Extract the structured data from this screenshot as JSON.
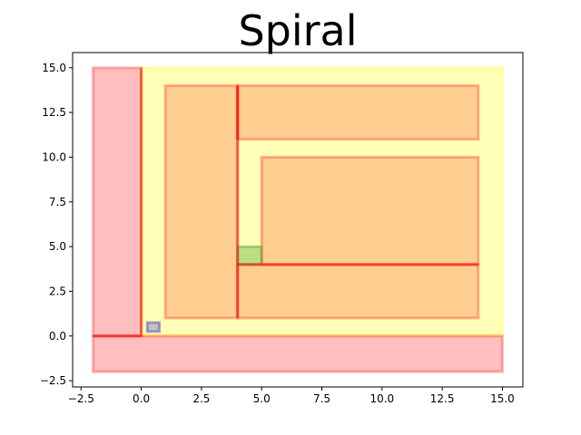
{
  "chart_data": {
    "type": "rectangles",
    "title": "Spiral",
    "xlabel": "",
    "ylabel": "",
    "xlim": [
      -2.85,
      15.85
    ],
    "ylim": [
      -2.85,
      15.85
    ],
    "grid": false,
    "xticks": [
      {
        "value": -2.5,
        "label": "−2.5"
      },
      {
        "value": 0.0,
        "label": "0.0"
      },
      {
        "value": 2.5,
        "label": "2.5"
      },
      {
        "value": 5.0,
        "label": "5.0"
      },
      {
        "value": 7.5,
        "label": "7.5"
      },
      {
        "value": 10.0,
        "label": "10.0"
      },
      {
        "value": 12.5,
        "label": "12.5"
      },
      {
        "value": 15.0,
        "label": "15.0"
      }
    ],
    "yticks": [
      {
        "value": -2.5,
        "label": "−2.5"
      },
      {
        "value": 0.0,
        "label": "0.0"
      },
      {
        "value": 2.5,
        "label": "2.5"
      },
      {
        "value": 5.0,
        "label": "5.0"
      },
      {
        "value": 7.5,
        "label": "7.5"
      },
      {
        "value": 10.0,
        "label": "10.0"
      },
      {
        "value": 12.5,
        "label": "12.5"
      },
      {
        "value": 15.0,
        "label": "15.0"
      }
    ],
    "rectangles": [
      {
        "x0": 0,
        "y0": 0,
        "x1": 15,
        "y1": 15,
        "fill": "#ffff00",
        "fill_opacity": 0.28,
        "stroke": "#ffff00",
        "stroke_opacity": 0.28,
        "stroke_width": 3
      },
      {
        "x0": -2,
        "y0": 0,
        "x1": 0,
        "y1": 15,
        "fill": "#ff0000",
        "fill_opacity": 0.25,
        "stroke": "#ff0000",
        "stroke_opacity": 0.28,
        "stroke_width": 3
      },
      {
        "x0": -2,
        "y0": -2,
        "x1": 15,
        "y1": 0,
        "fill": "#ff0000",
        "fill_opacity": 0.25,
        "stroke": "#ff0000",
        "stroke_opacity": 0.28,
        "stroke_width": 3
      },
      {
        "x0": 1,
        "y0": 1,
        "x1": 4,
        "y1": 14,
        "fill": "#ff7f50",
        "fill_opacity": 0.38,
        "stroke": "#ff0000",
        "stroke_opacity": 0.28,
        "stroke_width": 3
      },
      {
        "x0": 4,
        "y0": 1,
        "x1": 14,
        "y1": 4,
        "fill": "#ff7f50",
        "fill_opacity": 0.38,
        "stroke": "#ff0000",
        "stroke_opacity": 0.28,
        "stroke_width": 3
      },
      {
        "x0": 5,
        "y0": 4,
        "x1": 14,
        "y1": 10,
        "fill": "#ff7f50",
        "fill_opacity": 0.38,
        "stroke": "#ff0000",
        "stroke_opacity": 0.28,
        "stroke_width": 3
      },
      {
        "x0": 4,
        "y0": 11,
        "x1": 14,
        "y1": 14,
        "fill": "#ff7f50",
        "fill_opacity": 0.38,
        "stroke": "#ff0000",
        "stroke_opacity": 0.28,
        "stroke_width": 3
      },
      {
        "x0": 4,
        "y0": 4,
        "x1": 5,
        "y1": 5,
        "fill": "#6db33f",
        "fill_opacity": 0.45,
        "stroke": "#3c8c28",
        "stroke_opacity": 0.35,
        "stroke_width": 3
      },
      {
        "x0": 0.25,
        "y0": 0.25,
        "x1": 0.75,
        "y1": 0.75,
        "fill": "#7b7bd6",
        "fill_opacity": 0.45,
        "stroke": "#4b4bbb",
        "stroke_opacity": 0.5,
        "stroke_width": 3
      }
    ],
    "segments": [
      {
        "x0": 0,
        "y0": 0,
        "x1": 0,
        "y1": 15,
        "color": "#ff0000",
        "opacity": 0.45,
        "width": 3
      },
      {
        "x0": -2,
        "y0": 0,
        "x1": 0,
        "y1": 0,
        "color": "#ff0000",
        "opacity": 0.45,
        "width": 3
      },
      {
        "x0": 4,
        "y0": 1,
        "x1": 4,
        "y1": 14,
        "color": "#ff0000",
        "opacity": 0.45,
        "width": 3
      },
      {
        "x0": 4,
        "y0": 4,
        "x1": 14,
        "y1": 4,
        "color": "#ff0000",
        "opacity": 0.45,
        "width": 3
      },
      {
        "x0": 4,
        "y0": 11,
        "x1": 4,
        "y1": 14,
        "color": "#ff0000",
        "opacity": 0.45,
        "width": 3
      }
    ]
  }
}
